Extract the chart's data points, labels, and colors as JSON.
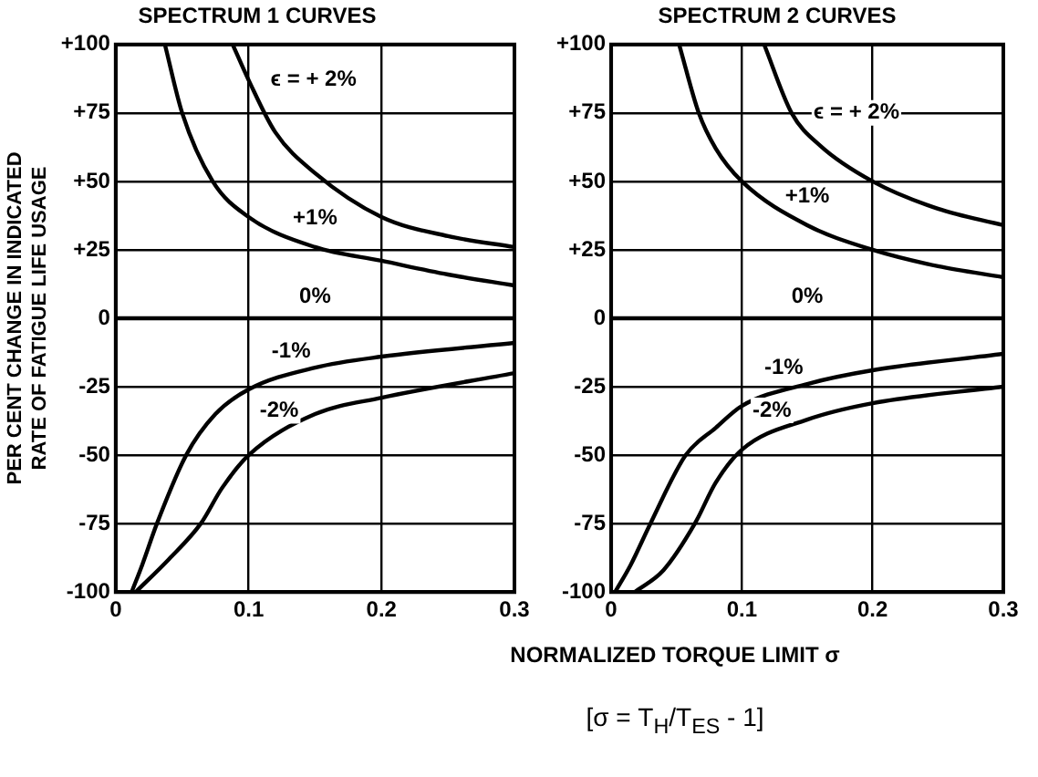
{
  "chart_data": [
    {
      "type": "line",
      "title": "SPECTRUM 1 CURVES",
      "ylabel": "PER CENT CHANGE IN INDICATED RATE OF FATIGUE LIFE USAGE",
      "xlim": [
        0,
        0.3
      ],
      "xticks": [
        0,
        0.1,
        0.2,
        0.3
      ],
      "ylim": [
        -100,
        100
      ],
      "yticks": [
        {
          "value": -100,
          "label": "-100"
        },
        {
          "value": -75,
          "label": "-75"
        },
        {
          "value": -50,
          "label": "-50"
        },
        {
          "value": -25,
          "label": "-25"
        },
        0,
        {
          "value": 25,
          "label": "+25"
        },
        {
          "value": 50,
          "label": "+50"
        },
        {
          "value": 75,
          "label": "+75"
        },
        {
          "value": 100,
          "label": "+100"
        }
      ],
      "grid": true,
      "legend": false,
      "marker": "none",
      "line_style": "solid",
      "series": [
        {
          "name": "ϵ = + 2%",
          "color": "#000000",
          "x": [
            0.088,
            0.1,
            0.12,
            0.15,
            0.2,
            0.25,
            0.3
          ],
          "values": [
            100,
            87,
            68,
            53,
            37,
            30,
            26
          ]
        },
        {
          "name": "+1%",
          "color": "#000000",
          "x": [
            0.037,
            0.05,
            0.073,
            0.1,
            0.15,
            0.2,
            0.25,
            0.3
          ],
          "values": [
            100,
            75,
            50,
            37,
            26,
            21,
            16,
            12
          ]
        },
        {
          "name": "0%",
          "color": "#000000",
          "x": [
            0,
            0.3
          ],
          "values": [
            0,
            0
          ]
        },
        {
          "name": "-1%",
          "color": "#000000",
          "x": [
            0.012,
            0.02,
            0.031,
            0.053,
            0.075,
            0.1,
            0.15,
            0.2,
            0.3
          ],
          "values": [
            -100,
            -90,
            -75,
            -50,
            -35,
            -26,
            -18,
            -14,
            -9
          ]
        },
        {
          "name": "-2%",
          "color": "#000000",
          "x": [
            0.015,
            0.04,
            0.064,
            0.08,
            0.1,
            0.15,
            0.2,
            0.3
          ],
          "values": [
            -100,
            -88,
            -75,
            -62,
            -50,
            -35,
            -29,
            -20
          ]
        }
      ]
    },
    {
      "type": "line",
      "title": "SPECTRUM 2 CURVES",
      "xlabel": "NORMALIZED TORQUE LIMIT σ",
      "xlim": [
        0,
        0.3
      ],
      "xticks": [
        0,
        0.1,
        0.2,
        0.3
      ],
      "ylim": [
        -100,
        100
      ],
      "yticks": [
        {
          "value": -100,
          "label": "-100"
        },
        {
          "value": -75,
          "label": "-75"
        },
        {
          "value": -50,
          "label": "-50"
        },
        {
          "value": -25,
          "label": "-25"
        },
        0,
        {
          "value": 25,
          "label": "+25"
        },
        {
          "value": 50,
          "label": "+50"
        },
        {
          "value": 75,
          "label": "+75"
        },
        {
          "value": 100,
          "label": "+100"
        }
      ],
      "grid": true,
      "legend": false,
      "marker": "none",
      "line_style": "solid",
      "series": [
        {
          "name": "ϵ = + 2%",
          "color": "#000000",
          "x": [
            0.117,
            0.138,
            0.16,
            0.2,
            0.25,
            0.3
          ],
          "values": [
            100,
            75,
            63,
            50,
            40,
            34
          ]
        },
        {
          "name": "+1%",
          "color": "#000000",
          "x": [
            0.052,
            0.067,
            0.08,
            0.1,
            0.15,
            0.2,
            0.25,
            0.3
          ],
          "values": [
            100,
            75,
            62,
            50,
            34,
            25,
            19,
            15
          ]
        },
        {
          "name": "0%",
          "color": "#000000",
          "x": [
            0,
            0.3
          ],
          "values": [
            0,
            0
          ]
        },
        {
          "name": "-1%",
          "color": "#000000",
          "x": [
            0.003,
            0.015,
            0.03,
            0.057,
            0.08,
            0.1,
            0.15,
            0.2,
            0.3
          ],
          "values": [
            -100,
            -90,
            -75,
            -50,
            -40,
            -32,
            -24,
            -19,
            -13
          ]
        },
        {
          "name": "-2%",
          "color": "#000000",
          "x": [
            0.018,
            0.04,
            0.064,
            0.08,
            0.1,
            0.15,
            0.2,
            0.3
          ],
          "values": [
            -100,
            -92,
            -75,
            -60,
            -48,
            -37,
            -31,
            -25
          ]
        }
      ],
      "annotations": [
        "[σ = T$_{H}$/T$_{ES}$ - 1]"
      ]
    }
  ]
}
